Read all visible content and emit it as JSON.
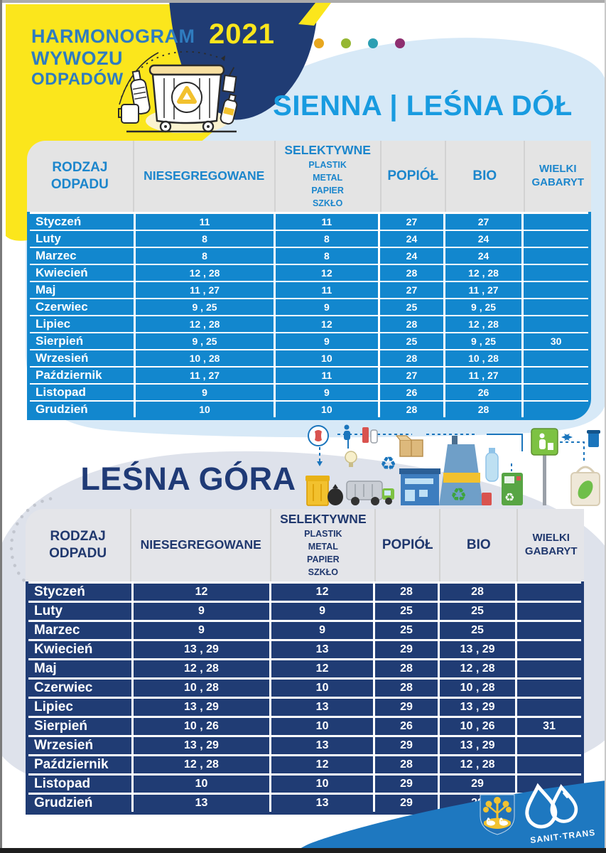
{
  "header": {
    "title_line1": "HARMONOGRAM",
    "title_line2": "WYWOZU",
    "title_line3": "ODPADÓW",
    "year": "2021",
    "dot_colors": [
      "#E8A71F",
      "#95B733",
      "#2C9FB3",
      "#8E2F70"
    ]
  },
  "columns": {
    "c1_line1": "RODZAJ",
    "c1_line2": "ODPADU",
    "c2": "NIESEGREGOWANE",
    "c3_title": "SELEKTYWNE",
    "c3_sub": [
      "PLASTIK",
      "METAL",
      "PAPIER",
      "SZKŁO"
    ],
    "c4": "POPIÓŁ",
    "c5": "BIO",
    "c6_line1": "WIELKI",
    "c6_line2": "GABARYT"
  },
  "table1": {
    "title": "SIENNA | LEŚNA DÓŁ",
    "rows": [
      [
        "Styczeń",
        "11",
        "11",
        "27",
        "27",
        ""
      ],
      [
        "Luty",
        "8",
        "8",
        "24",
        "24",
        ""
      ],
      [
        "Marzec",
        "8",
        "8",
        "24",
        "24",
        ""
      ],
      [
        "Kwiecień",
        "12 , 28",
        "12",
        "28",
        "12 , 28",
        ""
      ],
      [
        "Maj",
        "11 , 27",
        "11",
        "27",
        "11 , 27",
        ""
      ],
      [
        "Czerwiec",
        "9 , 25",
        "9",
        "25",
        "9 , 25",
        ""
      ],
      [
        "Lipiec",
        "12 , 28",
        "12",
        "28",
        "12 , 28",
        ""
      ],
      [
        "Sierpień",
        "9 , 25",
        "9",
        "25",
        "9 , 25",
        "30"
      ],
      [
        "Wrzesień",
        "10 , 28",
        "10",
        "28",
        "10 , 28",
        ""
      ],
      [
        "Październik",
        "11 , 27",
        "11",
        "27",
        "11 , 27",
        ""
      ],
      [
        "Listopad",
        "9",
        "9",
        "26",
        "26",
        ""
      ],
      [
        "Grudzień",
        "10",
        "10",
        "28",
        "28",
        ""
      ]
    ]
  },
  "table2": {
    "title": "LEŚNA GÓRA",
    "rows": [
      [
        "Styczeń",
        "12",
        "12",
        "28",
        "28",
        ""
      ],
      [
        "Luty",
        "9",
        "9",
        "25",
        "25",
        ""
      ],
      [
        "Marzec",
        "9",
        "9",
        "25",
        "25",
        ""
      ],
      [
        "Kwiecień",
        "13 , 29",
        "13",
        "29",
        "13 , 29",
        ""
      ],
      [
        "Maj",
        "12 , 28",
        "12",
        "28",
        "12 , 28",
        ""
      ],
      [
        "Czerwiec",
        "10 , 28",
        "10",
        "28",
        "10 , 28",
        ""
      ],
      [
        "Lipiec",
        "13 , 29",
        "13",
        "29",
        "13 , 29",
        ""
      ],
      [
        "Sierpień",
        "10 , 26",
        "10",
        "26",
        "10 , 26",
        "31"
      ],
      [
        "Wrzesień",
        "13 , 29",
        "13",
        "29",
        "13 , 29",
        ""
      ],
      [
        "Październik",
        "12 , 28",
        "12",
        "28",
        "12 , 28",
        ""
      ],
      [
        "Listopad",
        "10",
        "10",
        "29",
        "29",
        ""
      ],
      [
        "Grudzień",
        "13",
        "13",
        "29",
        "29",
        ""
      ]
    ]
  },
  "footer": {
    "logo_text": "SANIT·TRANS"
  },
  "colors": {
    "yellow_blob": "#FBE61C",
    "navy": "#203C74",
    "header_text_blue": "#2F7CBF",
    "section1_title_blue": "#189BE0",
    "row_blue": "#1287CE",
    "row_navy": "#203C74",
    "header_grey": "#E4E4E4",
    "light_blue_blob": "#D7E9F7",
    "grey_blue_blob": "#DEE2EB",
    "footer_band_blue": "#1E78C0"
  }
}
